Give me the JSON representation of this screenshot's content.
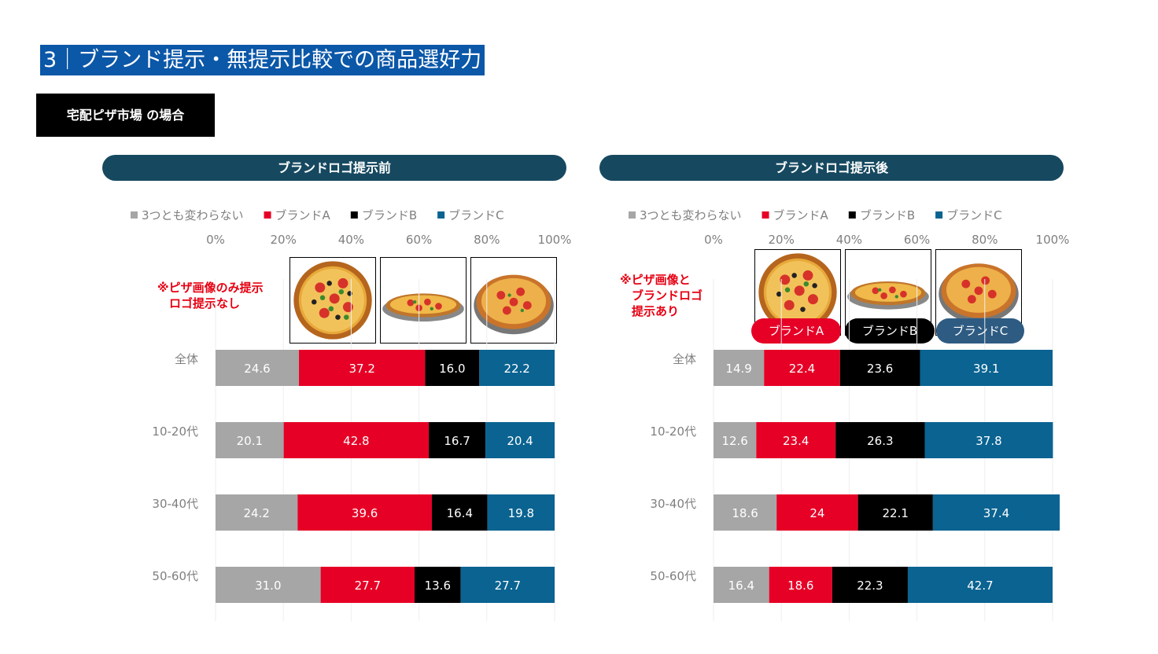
{
  "page": {
    "title": "3｜ブランド提示・無提示比較での商品選好力",
    "subtitle": "宅配ピザ市場 の場合"
  },
  "panels": {
    "left": {
      "header": "ブランドロゴ提示前",
      "note": "※ピザ画像のみ提示\n　ロゴ提示なし"
    },
    "right": {
      "header": "ブランドロゴ提示後",
      "note": "※ピザ画像と\n　ブランドロゴ\n　提示あり",
      "brand_tags": [
        "ブランドA",
        "ブランドB",
        "ブランドC"
      ]
    }
  },
  "colors": {
    "none": "#a6a6a6",
    "brandA": "#e60026",
    "brandB": "#000000",
    "brandC": "#0a6391",
    "header": "#164960",
    "title_bg": "#0b57a8"
  },
  "icons": [
    "pizza-top-view-icon",
    "pizza-side-view-icon",
    "pizza-angled-view-icon"
  ],
  "chart_data": [
    {
      "type": "bar",
      "orientation": "horizontal",
      "stacked": true,
      "title": "ブランドロゴ提示前",
      "categories": [
        "全体",
        "10-20代",
        "30-40代",
        "50-60代"
      ],
      "xlim": [
        0,
        100
      ],
      "ticks": [
        "0%",
        "20%",
        "40%",
        "60%",
        "80%",
        "100%"
      ],
      "grid": true,
      "legend": "top",
      "series": [
        {
          "name": "3つとも変わらない",
          "values": [
            24.6,
            20.1,
            24.2,
            31.0
          ],
          "labels": [
            "24.6",
            "20.1",
            "24.2",
            "31.0"
          ]
        },
        {
          "name": "ブランドA",
          "values": [
            37.2,
            42.8,
            39.6,
            27.7
          ],
          "labels": [
            "37.2",
            "42.8",
            "39.6",
            "27.7"
          ]
        },
        {
          "name": "ブランドB",
          "values": [
            16.0,
            16.7,
            16.4,
            13.6
          ],
          "labels": [
            "16.0",
            "16.7",
            "16.4",
            "13.6"
          ]
        },
        {
          "name": "ブランドC",
          "values": [
            22.2,
            20.4,
            19.8,
            27.7
          ],
          "labels": [
            "22.2",
            "20.4",
            "19.8",
            "27.7"
          ]
        }
      ]
    },
    {
      "type": "bar",
      "orientation": "horizontal",
      "stacked": true,
      "title": "ブランドロゴ提示後",
      "categories": [
        "全体",
        "10-20代",
        "30-40代",
        "50-60代"
      ],
      "xlim": [
        0,
        100
      ],
      "ticks": [
        "0%",
        "20%",
        "40%",
        "60%",
        "80%",
        "100%"
      ],
      "grid": true,
      "legend": "top",
      "series": [
        {
          "name": "3つとも変わらない",
          "values": [
            14.9,
            12.6,
            18.6,
            16.4
          ],
          "labels": [
            "14.9",
            "12.6",
            "18.6",
            "16.4"
          ]
        },
        {
          "name": "ブランドA",
          "values": [
            22.4,
            23.4,
            24,
            18.6
          ],
          "labels": [
            "22.4",
            "23.4",
            "24",
            "18.6"
          ]
        },
        {
          "name": "ブランドB",
          "values": [
            23.6,
            26.3,
            22.1,
            22.3
          ],
          "labels": [
            "23.6",
            "26.3",
            "22.1",
            "22.3"
          ]
        },
        {
          "name": "ブランドC",
          "values": [
            39.1,
            37.8,
            37.4,
            42.7
          ],
          "labels": [
            "39.1",
            "37.8",
            "37.4",
            "42.7"
          ]
        }
      ]
    }
  ]
}
